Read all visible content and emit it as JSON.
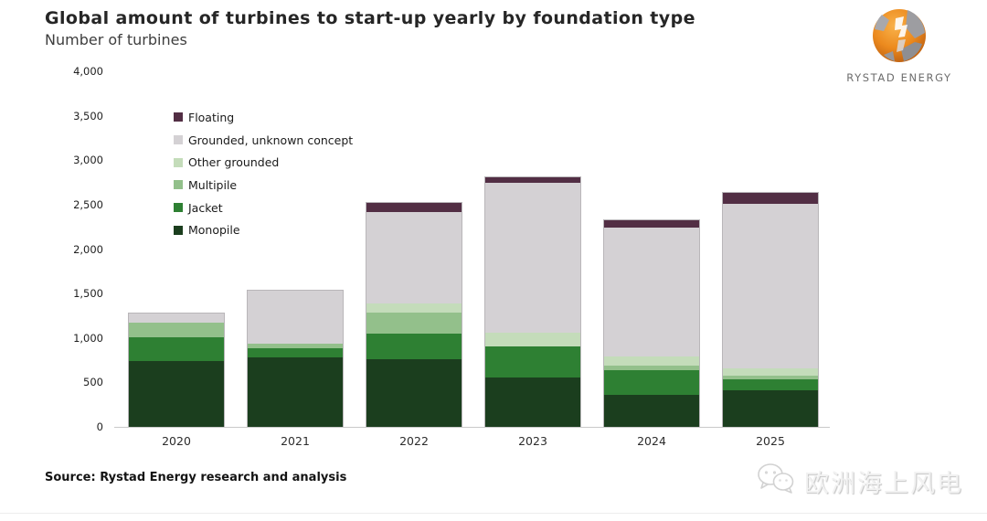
{
  "header": {
    "title": "Global amount of turbines to start-up yearly by foundation type",
    "subtitle": "Number of turbines"
  },
  "logo": {
    "brand": "RYSTAD ENERGY"
  },
  "source_line": "Source: Rystad Energy research and analysis",
  "watermark": {
    "text": "欧洲海上风电",
    "icon": "wechat-icon"
  },
  "chart_data": {
    "type": "bar",
    "stacked": true,
    "title": "Global amount of turbines to start-up yearly by foundation type",
    "ylabel": "Number of turbines",
    "xlabel": "",
    "categories": [
      "2020",
      "2021",
      "2022",
      "2023",
      "2024",
      "2025"
    ],
    "series": [
      {
        "name": "Monopile",
        "color": "#1b3e1e",
        "values": [
          740,
          780,
          760,
          555,
          360,
          410
        ]
      },
      {
        "name": "Jacket",
        "color": "#2e8033",
        "values": [
          265,
          100,
          290,
          350,
          280,
          120
        ]
      },
      {
        "name": "Multipile",
        "color": "#93c08b",
        "values": [
          165,
          55,
          235,
          0,
          50,
          50
        ]
      },
      {
        "name": "Other grounded",
        "color": "#c4dcba",
        "values": [
          0,
          0,
          100,
          155,
          105,
          75
        ]
      },
      {
        "name": "Grounded, unknown concept",
        "color": "#d4d1d4",
        "values": [
          110,
          595,
          1030,
          1690,
          1445,
          1850
        ]
      },
      {
        "name": "Floating",
        "color": "#522e44",
        "values": [
          0,
          0,
          100,
          55,
          80,
          130
        ]
      }
    ],
    "totals": [
      1280,
      1530,
      2515,
      2805,
      2320,
      2635
    ],
    "legend_order": [
      "Floating",
      "Grounded, unknown concept",
      "Other grounded",
      "Multipile",
      "Jacket",
      "Monopile"
    ],
    "ylim": [
      0,
      4000
    ],
    "yticks": [
      0,
      500,
      1000,
      1500,
      2000,
      2500,
      3000,
      3500,
      4000
    ],
    "grid": false,
    "legend_position": "upper-left-inside"
  }
}
